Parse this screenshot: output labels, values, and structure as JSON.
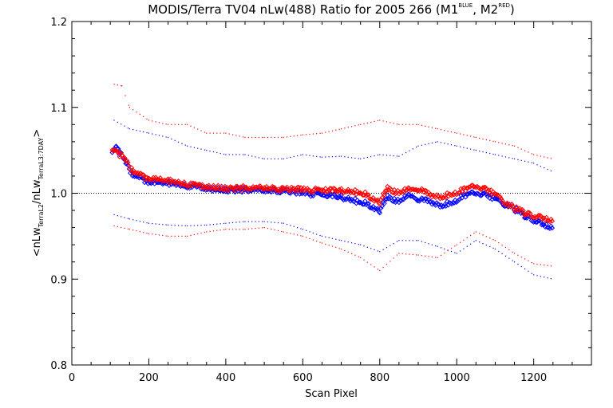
{
  "chart_data": {
    "type": "scatter",
    "title": {
      "main": "MODIS/Terra TV04 nLw(488) Ratio for 2005 266 (M1",
      "sup1": "BLUE",
      "mid": ", M2",
      "sup2": "RED",
      "end": ")"
    },
    "xlabel": "Scan Pixel",
    "ylabel": {
      "p1": "<nLw",
      "s1": "TerraL2",
      "p2": "/nLw",
      "s2": "TerraL3:7DAY",
      "p3": ">"
    },
    "xlim": [
      0,
      1350
    ],
    "ylim": [
      0.8,
      1.2
    ],
    "xticks": [
      0,
      200,
      400,
      600,
      800,
      1000,
      1200
    ],
    "yticks": [
      0.8,
      0.9,
      1.0,
      1.1,
      1.2
    ],
    "ytick_labels": [
      "0.8",
      "0.9",
      "1.0",
      "1.1",
      "1.2"
    ],
    "reference_line": 1.0,
    "colors": {
      "M1": "#0000ff",
      "M2": "#ff0000"
    },
    "series": [
      {
        "name": "M1",
        "role": "ratio",
        "x": [
          105,
          115,
          125,
          140,
          160,
          180,
          200,
          250,
          300,
          350,
          400,
          450,
          500,
          550,
          600,
          650,
          700,
          750,
          780,
          800,
          820,
          850,
          880,
          900,
          930,
          960,
          990,
          1020,
          1050,
          1080,
          1110,
          1140,
          1170,
          1200,
          1230,
          1250
        ],
        "y": [
          1.045,
          1.055,
          1.047,
          1.035,
          1.02,
          1.016,
          1.013,
          1.012,
          1.008,
          1.005,
          1.004,
          1.004,
          1.003,
          1.003,
          1.0,
          0.998,
          0.995,
          0.99,
          0.985,
          0.98,
          0.995,
          0.99,
          0.998,
          0.993,
          0.99,
          0.985,
          0.99,
          0.998,
          1.0,
          0.998,
          0.99,
          0.985,
          0.975,
          0.968,
          0.962,
          0.96
        ]
      },
      {
        "name": "M2",
        "role": "ratio",
        "x": [
          105,
          115,
          125,
          140,
          160,
          180,
          200,
          250,
          300,
          350,
          400,
          450,
          500,
          550,
          600,
          650,
          700,
          750,
          780,
          800,
          820,
          850,
          880,
          900,
          930,
          960,
          990,
          1020,
          1050,
          1080,
          1110,
          1140,
          1170,
          1200,
          1230,
          1250
        ],
        "y": [
          1.048,
          1.05,
          1.045,
          1.038,
          1.024,
          1.02,
          1.017,
          1.015,
          1.01,
          1.007,
          1.006,
          1.006,
          1.006,
          1.005,
          1.004,
          1.003,
          1.003,
          1.001,
          0.995,
          0.99,
          1.005,
          1.0,
          1.005,
          1.005,
          0.998,
          0.995,
          1.0,
          1.005,
          1.008,
          1.004,
          0.995,
          0.985,
          0.978,
          0.973,
          0.97,
          0.968
        ]
      },
      {
        "name": "M1",
        "role": "upper_envelope",
        "x": [
          110,
          150,
          200,
          250,
          300,
          350,
          400,
          450,
          500,
          550,
          600,
          650,
          700,
          750,
          800,
          850,
          900,
          950,
          1000,
          1050,
          1100,
          1150,
          1200,
          1250
        ],
        "y": [
          1.085,
          1.075,
          1.07,
          1.065,
          1.055,
          1.05,
          1.045,
          1.045,
          1.04,
          1.04,
          1.045,
          1.042,
          1.043,
          1.04,
          1.045,
          1.043,
          1.055,
          1.06,
          1.055,
          1.05,
          1.045,
          1.04,
          1.035,
          1.025
        ]
      },
      {
        "name": "M2",
        "role": "upper_envelope",
        "x": [
          110,
          130,
          150,
          200,
          250,
          300,
          350,
          400,
          450,
          500,
          550,
          600,
          650,
          700,
          750,
          800,
          850,
          900,
          950,
          1000,
          1050,
          1100,
          1150,
          1200,
          1250
        ],
        "y": [
          1.127,
          1.125,
          1.1,
          1.085,
          1.08,
          1.08,
          1.07,
          1.07,
          1.065,
          1.065,
          1.065,
          1.068,
          1.07,
          1.075,
          1.08,
          1.085,
          1.08,
          1.08,
          1.075,
          1.07,
          1.065,
          1.06,
          1.055,
          1.045,
          1.04
        ]
      },
      {
        "name": "M1",
        "role": "lower_envelope",
        "x": [
          110,
          150,
          200,
          250,
          300,
          350,
          400,
          450,
          500,
          550,
          600,
          650,
          700,
          750,
          800,
          850,
          900,
          950,
          1000,
          1050,
          1100,
          1150,
          1200,
          1250
        ],
        "y": [
          0.975,
          0.97,
          0.965,
          0.963,
          0.962,
          0.963,
          0.965,
          0.967,
          0.967,
          0.965,
          0.958,
          0.95,
          0.945,
          0.94,
          0.932,
          0.945,
          0.945,
          0.938,
          0.93,
          0.945,
          0.935,
          0.92,
          0.905,
          0.9
        ]
      },
      {
        "name": "M2",
        "role": "lower_envelope",
        "x": [
          110,
          150,
          200,
          250,
          300,
          350,
          400,
          450,
          500,
          550,
          600,
          650,
          700,
          750,
          800,
          850,
          900,
          950,
          1000,
          1050,
          1100,
          1150,
          1200,
          1250
        ],
        "y": [
          0.962,
          0.958,
          0.953,
          0.95,
          0.95,
          0.955,
          0.958,
          0.958,
          0.96,
          0.955,
          0.95,
          0.942,
          0.935,
          0.925,
          0.91,
          0.93,
          0.928,
          0.925,
          0.94,
          0.955,
          0.945,
          0.93,
          0.918,
          0.915
        ]
      }
    ]
  }
}
